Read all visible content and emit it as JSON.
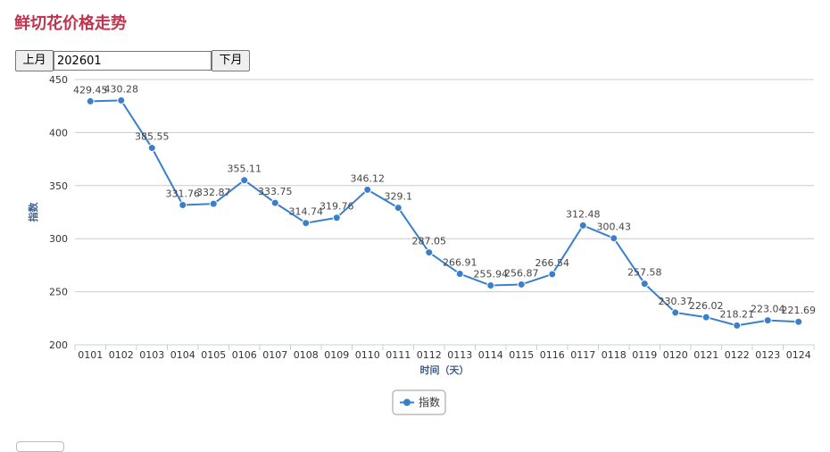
{
  "page": {
    "title": "鲜切花价格走势"
  },
  "toolbar": {
    "prev_label": "上月",
    "month_value": "202601",
    "next_label": "下月"
  },
  "colors": {
    "title": "#c0334f",
    "series": "#3a7fca",
    "grid": "#cccccc",
    "axis_title": "#3f5f8a"
  },
  "chart_data": {
    "type": "line",
    "categories": [
      "0101",
      "0102",
      "0103",
      "0104",
      "0105",
      "0106",
      "0107",
      "0108",
      "0109",
      "0110",
      "0111",
      "0112",
      "0113",
      "0114",
      "0115",
      "0116",
      "0117",
      "0118",
      "0119",
      "0120",
      "0121",
      "0122",
      "0123",
      "0124"
    ],
    "series": [
      {
        "name": "指数",
        "values": [
          429.45,
          430.28,
          385.55,
          331.76,
          332.87,
          355.11,
          333.75,
          314.74,
          319.76,
          346.12,
          329.1,
          287.05,
          266.91,
          255.94,
          256.87,
          266.54,
          312.48,
          300.43,
          257.58,
          230.37,
          226.02,
          218.21,
          223.04,
          221.69
        ],
        "labels": [
          "429.45",
          "430.28",
          "385.55",
          "331.76",
          "332.87",
          "355.11",
          "333.75",
          "314.74",
          "319.76",
          "346.12",
          "329.1",
          "287.05",
          "266.91",
          "255.94",
          "256.87",
          "266.54",
          "312.48",
          "300.43",
          "257.58",
          "230.37",
          "226.02",
          "218.21",
          "223.04",
          "221.69"
        ]
      }
    ],
    "xlabel": "时间（天）",
    "ylabel": "指数",
    "ylim": [
      200,
      450
    ],
    "yticks": [
      "200",
      "250",
      "300",
      "350",
      "400",
      "450"
    ],
    "grid": true,
    "legend": "bottom-center"
  }
}
